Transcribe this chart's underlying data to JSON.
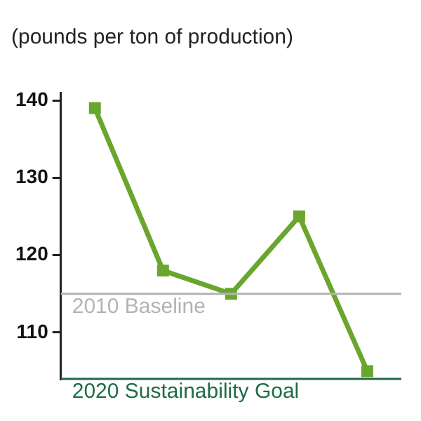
{
  "chart_data": {
    "type": "line",
    "title": "(pounds per ton of production)",
    "categories": [
      null,
      null,
      null,
      null,
      null
    ],
    "series": [
      {
        "color": "#6aa62e",
        "values": [
          139,
          118,
          115,
          125,
          105
        ]
      }
    ],
    "ylim": [
      104,
      141
    ],
    "yticks": [
      110,
      120,
      130,
      140
    ],
    "tick_labels": "y",
    "grid": false,
    "legend": false,
    "marker": "square",
    "line_style": "solid",
    "ref_lines": [
      {
        "axis": "y",
        "value": 115,
        "label": "2010 Baseline",
        "color": "#b3b3b3"
      },
      {
        "axis": "y",
        "value": 104,
        "label": "2020 Sustainability Goal",
        "color": "#1e6b4a"
      }
    ]
  }
}
